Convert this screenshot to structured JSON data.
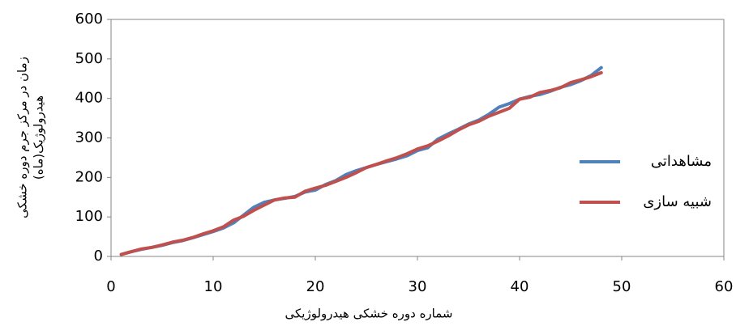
{
  "chart_data": {
    "type": "line",
    "x_label": "شماره دوره خشکی هیدرولوژیکی",
    "y_label": [
      "زمان در مرکز جرم دوره خشکی",
      "هیدرولوژیک(ماه)"
    ],
    "x": [
      1,
      2,
      3,
      4,
      5,
      6,
      7,
      8,
      9,
      10,
      11,
      12,
      13,
      14,
      15,
      16,
      17,
      18,
      19,
      20,
      21,
      22,
      23,
      24,
      25,
      26,
      27,
      28,
      29,
      30,
      31,
      32,
      33,
      34,
      35,
      36,
      37,
      38,
      39,
      40,
      41,
      42,
      43,
      44,
      45,
      46,
      47,
      48
    ],
    "series": [
      {
        "name": "مشاهداتی",
        "color": "#4f81bd",
        "values": [
          5,
          12,
          18,
          23,
          28,
          35,
          40,
          47,
          55,
          63,
          72,
          85,
          105,
          125,
          137,
          143,
          147,
          152,
          163,
          168,
          182,
          192,
          207,
          217,
          225,
          233,
          240,
          247,
          255,
          268,
          275,
          297,
          310,
          322,
          335,
          345,
          360,
          378,
          387,
          398,
          405,
          410,
          418,
          428,
          435,
          445,
          458,
          478
        ]
      },
      {
        "name": "شبیه سازی",
        "color": "#c0504d",
        "values": [
          5,
          12,
          19,
          23,
          29,
          36,
          41,
          48,
          57,
          65,
          75,
          92,
          102,
          117,
          130,
          143,
          148,
          150,
          165,
          173,
          180,
          190,
          200,
          212,
          225,
          233,
          242,
          250,
          260,
          272,
          280,
          292,
          305,
          320,
          333,
          342,
          355,
          365,
          375,
          398,
          403,
          415,
          420,
          427,
          440,
          447,
          455,
          465
        ]
      }
    ],
    "xlim": [
      0,
      60
    ],
    "xticks": [
      0,
      10,
      20,
      30,
      40,
      50,
      60
    ],
    "ylim": [
      0,
      600
    ],
    "yticks": [
      0,
      100,
      200,
      300,
      400,
      500,
      600
    ],
    "grid": false,
    "legend": "right"
  }
}
